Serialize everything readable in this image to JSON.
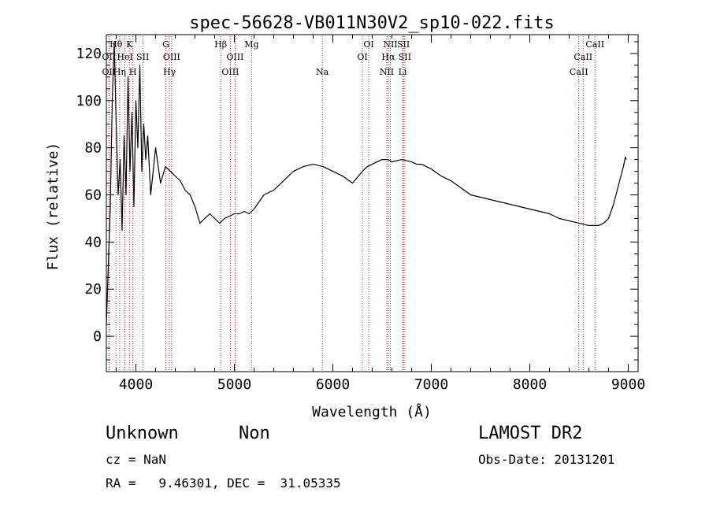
{
  "chart_data": {
    "type": "line",
    "title": "spec-56628-VB011N30V2_sp10-022.fits",
    "xlabel": "Wavelength (Å)",
    "ylabel": "Flux (relative)",
    "xlim": [
      3700,
      9100
    ],
    "ylim": [
      -15,
      128
    ],
    "xticks": [
      4000,
      5000,
      6000,
      7000,
      8000,
      9000
    ],
    "yticks": [
      0,
      20,
      40,
      60,
      80,
      100,
      120
    ],
    "grid": false,
    "series": [
      {
        "color": "#000000",
        "x": [
          3700,
          3720,
          3740,
          3760,
          3780,
          3800,
          3820,
          3840,
          3860,
          3880,
          3900,
          3920,
          3940,
          3960,
          3980,
          4000,
          4020,
          4040,
          4060,
          4080,
          4100,
          4120,
          4150,
          4200,
          4250,
          4300,
          4350,
          4400,
          4450,
          4500,
          4550,
          4600,
          4650,
          4700,
          4750,
          4800,
          4850,
          4900,
          4950,
          5000,
          5050,
          5100,
          5150,
          5200,
          5300,
          5400,
          5500,
          5600,
          5700,
          5800,
          5900,
          6000,
          6100,
          6200,
          6300,
          6350,
          6400,
          6500,
          6560,
          6600,
          6700,
          6800,
          6850,
          6900,
          7000,
          7100,
          7200,
          7300,
          7400,
          7500,
          7600,
          7700,
          7800,
          7900,
          8000,
          8100,
          8200,
          8300,
          8400,
          8500,
          8600,
          8650,
          8700,
          8750,
          8800,
          8850,
          8900,
          8950,
          8970,
          8980
        ],
        "y": [
          5,
          30,
          55,
          100,
          125,
          90,
          60,
          75,
          45,
          85,
          60,
          110,
          70,
          95,
          55,
          100,
          80,
          115,
          70,
          90,
          75,
          85,
          60,
          80,
          65,
          72,
          70,
          68,
          66,
          62,
          60,
          55,
          48,
          50,
          52,
          50,
          48,
          50,
          51,
          52,
          52,
          53,
          52,
          54,
          60,
          62,
          66,
          70,
          72,
          73,
          72,
          70,
          68,
          65,
          70,
          72,
          73,
          75,
          75,
          74,
          75,
          74,
          73,
          73,
          71,
          68,
          66,
          63,
          60,
          59,
          58,
          57,
          56,
          55,
          54,
          53,
          52,
          50,
          49,
          48,
          47,
          47,
          47,
          48,
          50,
          56,
          64,
          72,
          76,
          75
        ]
      }
    ],
    "spectral_lines": [
      {
        "label": "Hθ",
        "wl": 3798,
        "row": 0
      },
      {
        "label": "K",
        "wl": 3934,
        "row": 0
      },
      {
        "label": "OII",
        "wl": 3727,
        "row": 1
      },
      {
        "label": "HeI",
        "wl": 3889,
        "row": 1
      },
      {
        "label": "SII",
        "wl": 4070,
        "row": 1
      },
      {
        "label": "OII",
        "wl": 3727,
        "row": 2
      },
      {
        "label": "Hη",
        "wl": 3835,
        "row": 2
      },
      {
        "label": "H",
        "wl": 3969,
        "row": 2
      },
      {
        "label": "G",
        "wl": 4304,
        "row": 0
      },
      {
        "label": "OIII",
        "wl": 4363,
        "row": 1
      },
      {
        "label": "Hγ",
        "wl": 4341,
        "row": 2
      },
      {
        "label": "Hβ",
        "wl": 4861,
        "row": 0
      },
      {
        "label": "OIII",
        "wl": 5007,
        "row": 1
      },
      {
        "label": "OIII",
        "wl": 4959,
        "row": 2
      },
      {
        "label": "Mg",
        "wl": 5175,
        "row": 0
      },
      {
        "label": "Na",
        "wl": 5893,
        "row": 2
      },
      {
        "label": "OI",
        "wl": 6364,
        "row": 0
      },
      {
        "label": "OI",
        "wl": 6300,
        "row": 1
      },
      {
        "label": "NII",
        "wl": 6584,
        "row": 0
      },
      {
        "label": "SII",
        "wl": 6717,
        "row": 0
      },
      {
        "label": "Hα",
        "wl": 6563,
        "row": 1
      },
      {
        "label": "SII",
        "wl": 6731,
        "row": 1
      },
      {
        "label": "NII",
        "wl": 6548,
        "row": 2
      },
      {
        "label": "Li",
        "wl": 6708,
        "row": 2
      },
      {
        "label": "CaII",
        "wl": 8662,
        "row": 0
      },
      {
        "label": "CaII",
        "wl": 8542,
        "row": 1
      },
      {
        "label": "CaII",
        "wl": 8498,
        "row": 2
      }
    ]
  },
  "footer": {
    "object_class": "Unknown",
    "subclass": "Non",
    "survey": "LAMOST DR2",
    "redshift": "cz = NaN",
    "obs_date": "Obs-Date: 20131201",
    "coords": "RA =   9.46301, DEC =  31.05335"
  }
}
